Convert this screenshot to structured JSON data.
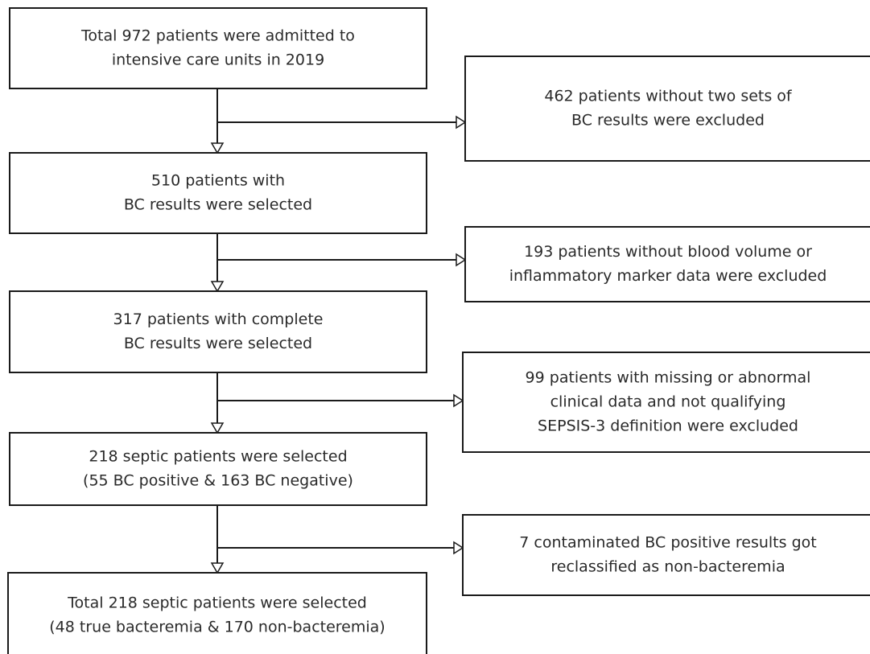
{
  "nodes": [
    {
      "lines": [
        "Total 972 patients were admitted to",
        "intensive care units in 2019"
      ]
    },
    {
      "lines": [
        "462 patients without two sets of",
        "BC results were excluded"
      ]
    },
    {
      "lines": [
        "510 patients with",
        "BC results were selected"
      ]
    },
    {
      "lines": [
        "193 patients without blood volume or",
        "inflammatory marker data were excluded"
      ]
    },
    {
      "lines": [
        "317 patients with complete",
        "BC results were selected"
      ]
    },
    {
      "lines": [
        "99 patients with missing or abnormal",
        "clinical data and not qualifying",
        "SEPSIS-3 definition were excluded"
      ]
    },
    {
      "lines": [
        "218 septic patients were selected",
        "(55 BC positive & 163 BC negative)"
      ]
    },
    {
      "lines": [
        "7 contaminated BC positive results got",
        "reclassified as non-bacteremia"
      ]
    },
    {
      "lines": [
        "Total 218 septic patients were selected",
        "(48 true bacteremia & 170 non-bacteremia)"
      ]
    }
  ]
}
